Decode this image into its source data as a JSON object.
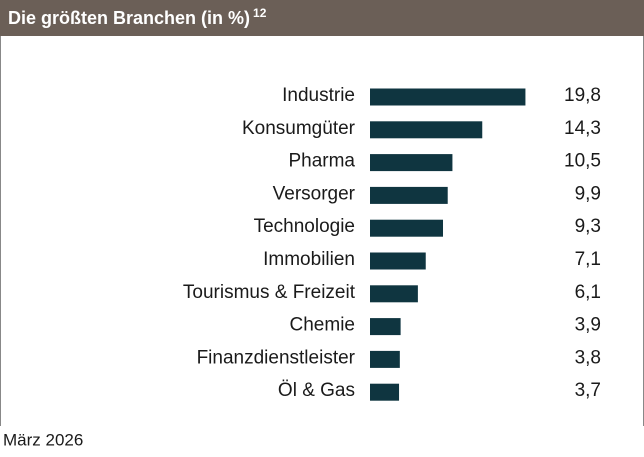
{
  "chart_data": {
    "type": "bar",
    "orientation": "horizontal",
    "title": "Die größten Branchen (in %)",
    "title_note": "12",
    "categories": [
      "Industrie",
      "Konsumgüter",
      "Pharma",
      "Versorger",
      "Technologie",
      "Immobilien",
      "Tourismus & Freizeit",
      "Chemie",
      "Finanzdienstleister",
      "Öl & Gas"
    ],
    "values": [
      19.8,
      14.3,
      10.5,
      9.9,
      9.3,
      7.1,
      6.1,
      3.9,
      3.8,
      3.7
    ],
    "value_labels": [
      "19,8",
      "14,3",
      "10,5",
      "9,9",
      "9,3",
      "7,1",
      "6,1",
      "3,9",
      "3,8",
      "3,7"
    ],
    "color": "#0f3540",
    "footnote": "März 2026"
  }
}
